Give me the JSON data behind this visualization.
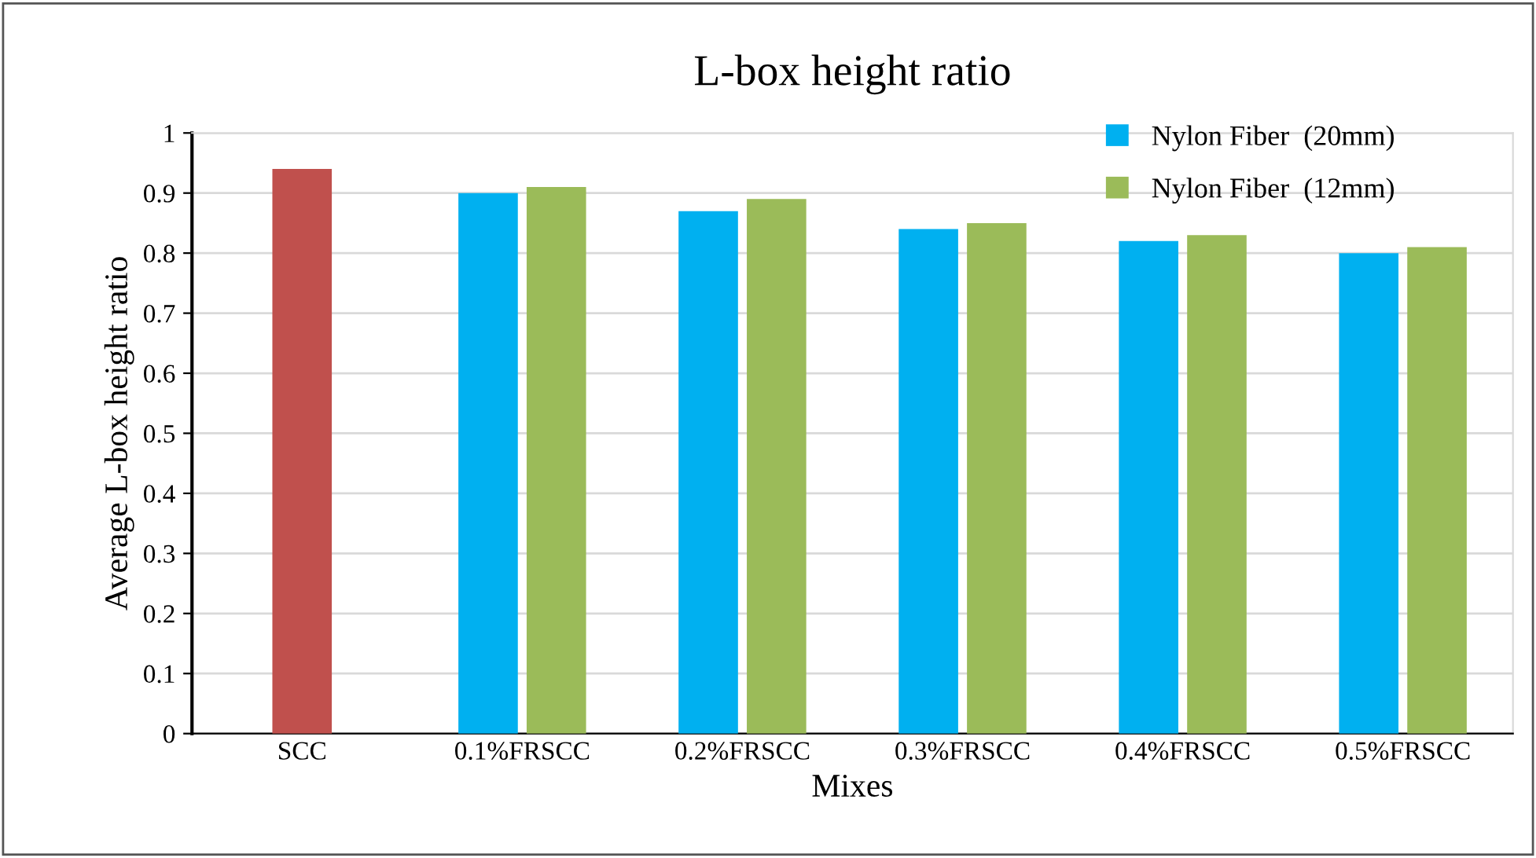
{
  "chart_data": {
    "type": "bar",
    "title": "L-box height ratio",
    "xlabel": "Mixes",
    "ylabel": "Average L-box height ratio",
    "categories": [
      "SCC",
      "0.1%FRSCC",
      "0.2%FRSCC",
      "0.3%FRSCC",
      "0.4%FRSCC",
      "0.5%FRSCC"
    ],
    "series": [
      {
        "color": "#c0504d",
        "values": [
          0.94,
          null,
          null,
          null,
          null,
          null
        ]
      },
      {
        "name": "Nylon Fiber  (20mm)",
        "color": "#00b0f0",
        "values": [
          null,
          0.9,
          0.87,
          0.84,
          0.82,
          0.8
        ]
      },
      {
        "name": "Nylon Fiber  (12mm)",
        "color": "#9bbb59",
        "values": [
          null,
          0.91,
          0.89,
          0.85,
          0.83,
          0.81
        ]
      }
    ],
    "ylim": [
      0,
      1
    ],
    "yticks": [
      0,
      0.1,
      0.2,
      0.3,
      0.4,
      0.5,
      0.6,
      0.7,
      0.8,
      0.9,
      1
    ],
    "grid": "y",
    "legend": "top right"
  }
}
